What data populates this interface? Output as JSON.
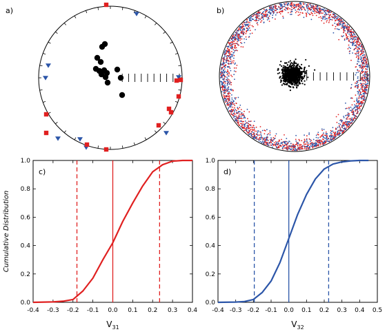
{
  "colors": {
    "red": "#e02020",
    "blue": "#2b55a8",
    "black": "#000000"
  },
  "chart_data": [
    {
      "type": "scatter",
      "panel": "a)",
      "projection": "equal-area stereonet",
      "series": [
        {
          "marker": "circle",
          "color": "#000000",
          "points": [
            [
              6,
              -58
            ],
            [
              6,
              -54
            ],
            [
              230,
              -58
            ],
            [
              215,
              -68
            ],
            [
              200,
              -54
            ],
            [
              190,
              -68
            ],
            [
              170,
              -56
            ],
            [
              340,
              -72
            ],
            [
              320,
              -72
            ],
            [
              300,
              -62
            ],
            [
              250,
              -75
            ],
            [
              150,
              -42
            ]
          ]
        },
        {
          "marker": "triangle",
          "color": "#2b55a8",
          "points": [
            [
              25,
              4
            ],
            [
              300,
              20
            ],
            [
              290,
              15
            ],
            [
              225,
              10
            ],
            [
              215,
              5
            ],
            [
              205,
              8
            ],
            [
              245,
              25
            ],
            [
              270,
              35
            ]
          ]
        },
        {
          "marker": "square",
          "color": "#e02020",
          "points": [
            [
              0,
              5
            ],
            [
              90,
              5
            ],
            [
              92,
              10
            ],
            [
              110,
              15
            ],
            [
              115,
              20
            ],
            [
              125,
              18
            ],
            [
              130,
              25
            ],
            [
              180,
              3
            ],
            [
              205,
              10
            ],
            [
              240,
              20
            ],
            [
              295,
              3
            ]
          ]
        }
      ]
    },
    {
      "type": "scatter",
      "panel": "b)",
      "projection": "equal-area stereonet",
      "series": [
        {
          "marker": "dot",
          "color": "#000000",
          "description_count": 1000
        },
        {
          "marker": "dot",
          "color": "#e02020"
        },
        {
          "marker": "dot",
          "color": "#2b55a8"
        }
      ]
    },
    {
      "type": "line",
      "panel": "c)",
      "xlabel": "V",
      "xlabel_sub": "31",
      "ylabel": "Cumulative Distribution",
      "xlim": [
        -0.4,
        0.4
      ],
      "ylim": [
        0.0,
        1.0
      ],
      "xticks": [
        "-0.4",
        "-0.3",
        "-0.2",
        "-0.1",
        "0.0",
        "0.1",
        "0.2",
        "0.3",
        "0.4"
      ],
      "yticks": [
        "0.0",
        "0.2",
        "0.4",
        "0.6",
        "0.8",
        "1.0"
      ],
      "color": "#e02020",
      "vlines": [
        {
          "x": -0.18,
          "style": "dashed"
        },
        {
          "x": 0.0,
          "style": "solid"
        },
        {
          "x": 0.235,
          "style": "dashed"
        }
      ],
      "series": [
        {
          "x": [
            -0.4,
            -0.3,
            -0.25,
            -0.2,
            -0.15,
            -0.1,
            -0.05,
            0.0,
            0.05,
            0.1,
            0.15,
            0.2,
            0.25,
            0.3,
            0.35,
            0.4
          ],
          "y": [
            0.0,
            0.003,
            0.008,
            0.02,
            0.08,
            0.17,
            0.3,
            0.42,
            0.57,
            0.7,
            0.82,
            0.92,
            0.97,
            0.995,
            1.0,
            1.0
          ]
        }
      ]
    },
    {
      "type": "line",
      "panel": "d)",
      "xlabel": "V",
      "xlabel_sub": "32",
      "ylabel": "",
      "xlim": [
        -0.4,
        0.5
      ],
      "ylim": [
        0.0,
        1.0
      ],
      "xticks": [
        "-0.4",
        "-0.3",
        "-0.2",
        "-0.1",
        "0.0",
        "0.1",
        "0.2",
        "0.3",
        "0.4",
        "0.5"
      ],
      "yticks": [
        "0.0",
        "0.2",
        "0.4",
        "0.6",
        "0.8",
        "1.0"
      ],
      "color": "#2b55a8",
      "vlines": [
        {
          "x": -0.195,
          "style": "dashed"
        },
        {
          "x": 0.0,
          "style": "solid"
        },
        {
          "x": 0.225,
          "style": "dashed"
        }
      ],
      "series": [
        {
          "x": [
            -0.4,
            -0.3,
            -0.25,
            -0.2,
            -0.15,
            -0.1,
            -0.05,
            0.0,
            0.05,
            0.1,
            0.15,
            0.2,
            0.25,
            0.3,
            0.35,
            0.4,
            0.45
          ],
          "y": [
            0.0,
            0.002,
            0.006,
            0.02,
            0.07,
            0.15,
            0.28,
            0.45,
            0.62,
            0.76,
            0.87,
            0.94,
            0.975,
            0.99,
            0.997,
            1.0,
            1.0
          ]
        }
      ]
    }
  ]
}
